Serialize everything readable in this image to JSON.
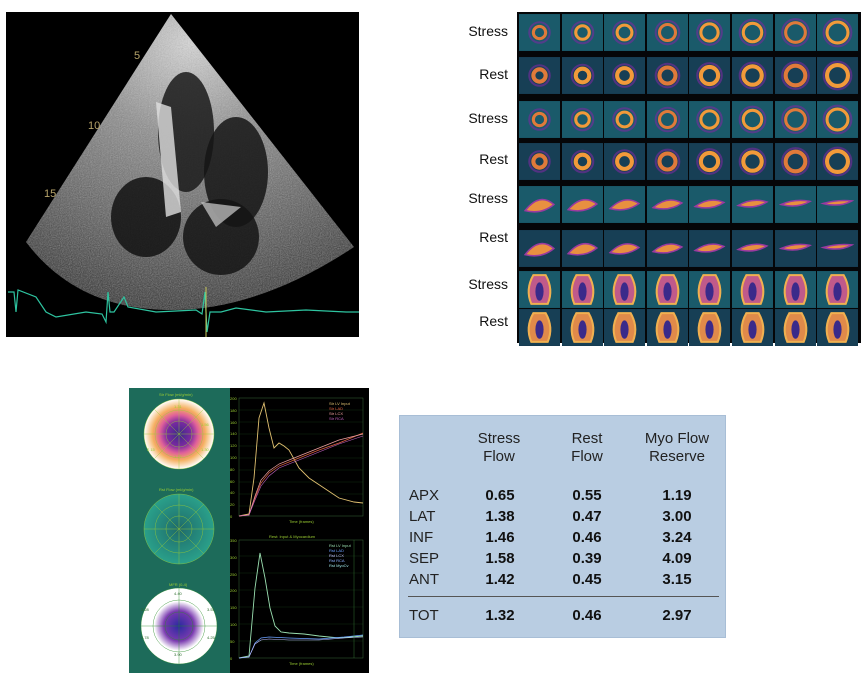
{
  "echo": {
    "depth_labels": [
      "5",
      "10",
      "15"
    ]
  },
  "spect": {
    "row_labels": [
      "Stress",
      "Rest",
      "Stress",
      "Rest",
      "Stress",
      "Rest",
      "Stress",
      "Rest"
    ]
  },
  "software": {
    "map_titles": [
      "Str Flow (ml/g/min)",
      "Rst Flow (ml/g/min)",
      "MFR (0-4)"
    ],
    "stress_map_values": [
      "1.31",
      "1.56",
      "2.15",
      "1.30",
      "1.27"
    ],
    "mfr_map_values": [
      "4.40",
      "3.28",
      "3.51",
      "2.78",
      "4.25",
      "3.90"
    ],
    "graph1_legend": [
      "Str LV Input",
      "Str LAD",
      "Str LCX",
      "Str RCA"
    ],
    "graph2_title": "Rest: Input & Myocardium",
    "graph2_legend": [
      "Rst LV Input",
      "Rst LAD",
      "Rst LCX",
      "Rst RCA",
      "Rst MyoCv"
    ],
    "xaxis_label": "Time (frames)",
    "y1_ticks": [
      "200",
      "180",
      "160",
      "140",
      "120",
      "100",
      "80",
      "60",
      "40",
      "20",
      "0"
    ],
    "y2_ticks": [
      "350",
      "300",
      "250",
      "200",
      "150",
      "100",
      "50",
      "0"
    ]
  },
  "table": {
    "headers": [
      {
        "line1": "Stress",
        "line2": "Flow"
      },
      {
        "line1": "Rest",
        "line2": "Flow"
      },
      {
        "line1": "Myo Flow",
        "line2": "Reserve"
      }
    ],
    "rows": [
      {
        "label": "APX",
        "stress": "0.65",
        "rest": "0.55",
        "reserve": "1.19"
      },
      {
        "label": "LAT",
        "stress": "1.38",
        "rest": "0.47",
        "reserve": "3.00"
      },
      {
        "label": "INF",
        "stress": "1.46",
        "rest": "0.46",
        "reserve": "3.24"
      },
      {
        "label": "SEP",
        "stress": "1.58",
        "rest": "0.39",
        "reserve": "4.09"
      },
      {
        "label": "ANT",
        "stress": "1.42",
        "rest": "0.45",
        "reserve": "3.15"
      }
    ],
    "total": {
      "label": "TOT",
      "stress": "1.32",
      "rest": "0.46",
      "reserve": "2.97"
    }
  }
}
